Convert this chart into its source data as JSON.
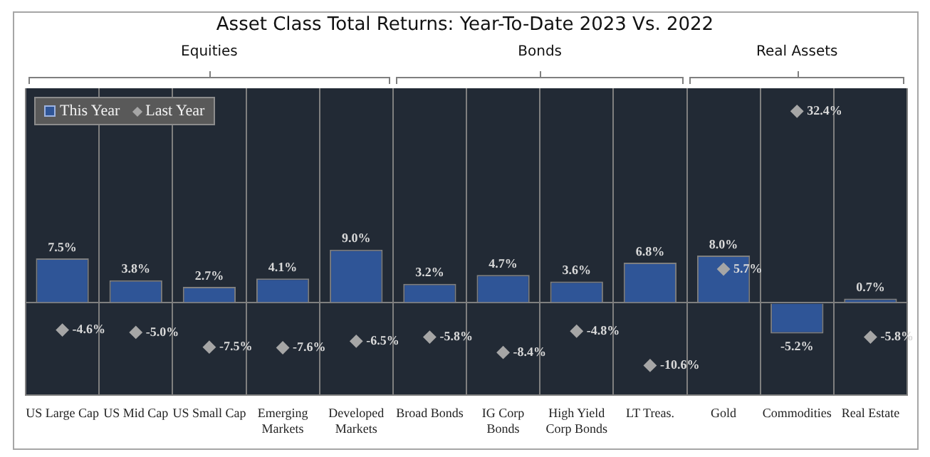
{
  "chart_data": {
    "type": "bar",
    "title": "Asset Class Total Returns: Year-To-Date 2023 Vs. 2022",
    "annotations": [
      "Equities",
      "Bonds",
      "Real Assets"
    ],
    "categories": [
      "US Large Cap",
      "US Mid Cap",
      "US Small Cap",
      "Emerging Markets",
      "Developed Markets",
      "Broad Bonds",
      "IG Corp Bonds",
      "High Yield Corp Bonds",
      "LT Treas.",
      "Gold",
      "Commodities",
      "Real Estate"
    ],
    "series": [
      {
        "name": "This Year",
        "color": "#2f5597",
        "values": [
          7.5,
          3.8,
          2.7,
          4.1,
          9.0,
          3.2,
          4.7,
          3.6,
          6.8,
          8.0,
          -5.2,
          0.7
        ],
        "value_labels": [
          "7.5%",
          "3.8%",
          "2.7%",
          "4.1%",
          "9.0%",
          "3.2%",
          "4.7%",
          "3.6%",
          "6.8%",
          "8.0%",
          "-5.2%",
          "0.7%"
        ]
      },
      {
        "name": "Last Year",
        "type": "scatter",
        "color": "#a6a6a6",
        "marker": "diamond",
        "values": [
          -4.6,
          -5.0,
          -7.5,
          -7.6,
          -6.5,
          -5.8,
          -8.4,
          -4.8,
          -10.6,
          5.7,
          32.4,
          -5.8
        ],
        "value_labels": [
          "-4.6%",
          "-5.0%",
          "-7.5%",
          "-7.6%",
          "-6.5%",
          "-5.8%",
          "-8.4%",
          "-4.8%",
          "-10.6%",
          "5.7%",
          "32.4%",
          "-5.8%"
        ]
      }
    ],
    "grid": "x",
    "legend": "top left"
  }
}
